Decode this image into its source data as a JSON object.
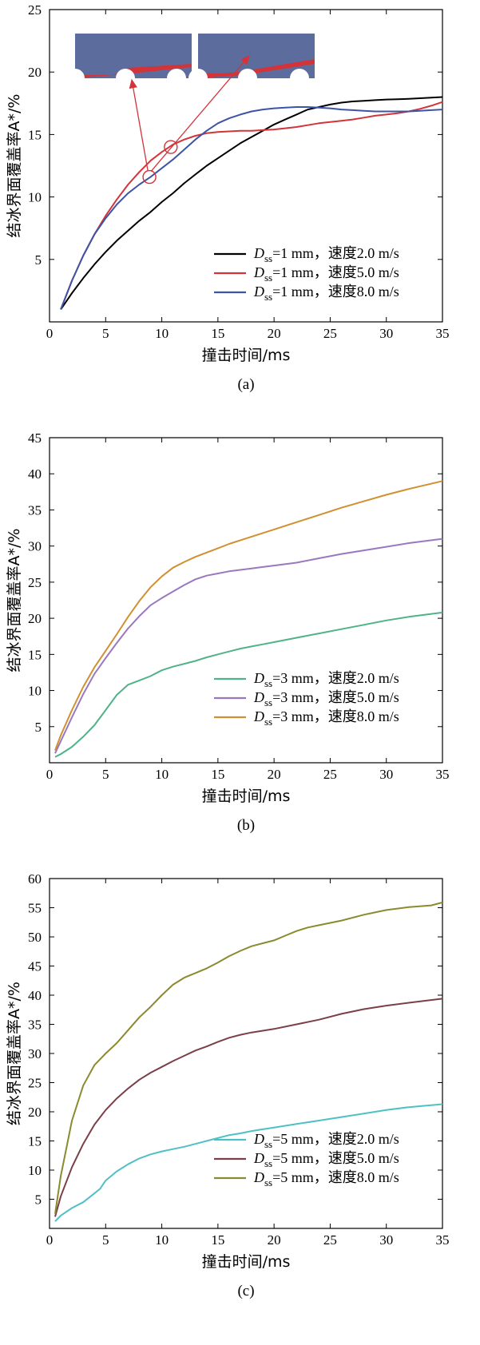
{
  "chart_data": [
    {
      "type": "line",
      "caption": "(a)",
      "xlabel": "撞击时间/ms",
      "ylabel": "结冰界面覆盖率A*/%",
      "xlim": [
        0,
        35
      ],
      "ylim": [
        0,
        25
      ],
      "xticks": [
        0,
        5,
        10,
        15,
        20,
        25,
        30,
        35
      ],
      "yticks": [
        5,
        10,
        15,
        20,
        25
      ],
      "legend_position": "bottom-right",
      "has_inset": true,
      "series": [
        {
          "name": "Dss=1 mm，速度2.0 m/s",
          "label_main": "D",
          "label_sub": "ss",
          "label_rest": "=1 mm，速度2.0 m/s",
          "color": "#000000",
          "x": [
            1,
            2,
            3,
            4,
            5,
            6,
            7,
            8,
            9,
            10,
            11,
            12,
            13,
            14,
            15,
            16,
            17,
            18,
            19,
            20,
            21,
            22,
            23,
            24,
            25,
            26,
            27,
            28,
            29,
            30,
            31,
            32,
            33,
            34,
            35
          ],
          "y": [
            1,
            2.3,
            3.5,
            4.6,
            5.6,
            6.5,
            7.3,
            8.1,
            8.8,
            9.6,
            10.3,
            11.1,
            11.8,
            12.5,
            13.1,
            13.7,
            14.3,
            14.8,
            15.3,
            15.8,
            16.2,
            16.6,
            17.0,
            17.2,
            17.4,
            17.55,
            17.65,
            17.7,
            17.75,
            17.8,
            17.82,
            17.85,
            17.9,
            17.95,
            18.0
          ]
        },
        {
          "name": "Dss=1 mm，速度5.0 m/s",
          "label_main": "D",
          "label_sub": "ss",
          "label_rest": "=1 mm，速度5.0 m/s",
          "color": "#d2343a",
          "x": [
            1,
            2,
            3,
            4,
            5,
            6,
            7,
            8,
            9,
            10,
            11,
            12,
            13,
            14,
            15,
            16,
            17,
            18,
            19,
            20,
            21,
            22,
            23,
            24,
            25,
            26,
            27,
            28,
            29,
            30,
            31,
            32,
            33,
            34,
            35
          ],
          "y": [
            1,
            3.3,
            5.3,
            7.0,
            8.5,
            9.8,
            11.0,
            12.0,
            12.9,
            13.6,
            14.2,
            14.6,
            14.9,
            15.1,
            15.2,
            15.25,
            15.3,
            15.3,
            15.35,
            15.4,
            15.5,
            15.6,
            15.75,
            15.9,
            16.0,
            16.1,
            16.2,
            16.35,
            16.5,
            16.6,
            16.7,
            16.85,
            17.05,
            17.3,
            17.6
          ]
        },
        {
          "name": "Dss=1 mm，速度8.0 m/s",
          "label_main": "D",
          "label_sub": "ss",
          "label_rest": "=1 mm，速度8.0 m/s",
          "color": "#3d54a6",
          "x": [
            1,
            2,
            3,
            4,
            5,
            6,
            7,
            8,
            9,
            10,
            11,
            12,
            13,
            14,
            15,
            16,
            17,
            18,
            19,
            20,
            21,
            22,
            23,
            24,
            25,
            26,
            27,
            28,
            29,
            30,
            31,
            32,
            33,
            34,
            35
          ],
          "y": [
            1,
            3.3,
            5.3,
            7.0,
            8.3,
            9.4,
            10.3,
            11.0,
            11.6,
            12.3,
            13.0,
            13.8,
            14.6,
            15.3,
            15.9,
            16.3,
            16.6,
            16.85,
            17.0,
            17.1,
            17.15,
            17.2,
            17.2,
            17.15,
            17.1,
            17.0,
            16.95,
            16.9,
            16.85,
            16.85,
            16.85,
            16.85,
            16.9,
            16.95,
            17.0
          ]
        }
      ]
    },
    {
      "type": "line",
      "caption": "(b)",
      "xlabel": "撞击时间/ms",
      "ylabel": "结冰界面覆盖率A*/%",
      "xlim": [
        0,
        35
      ],
      "ylim": [
        0,
        45
      ],
      "xticks": [
        0,
        5,
        10,
        15,
        20,
        25,
        30,
        35
      ],
      "yticks": [
        5,
        10,
        15,
        20,
        25,
        30,
        35,
        40,
        45
      ],
      "legend_position": "bottom-right",
      "series": [
        {
          "name": "Dss=3 mm，速度2.0 m/s",
          "label_main": "D",
          "label_sub": "ss",
          "label_rest": "=3 mm，速度2.0 m/s",
          "color": "#4fb387",
          "x": [
            0.5,
            1,
            2,
            3,
            4,
            5,
            6,
            7,
            8,
            9,
            10,
            11,
            12,
            13,
            14,
            15,
            16,
            17,
            18,
            19,
            20,
            22,
            24,
            26,
            28,
            30,
            32,
            35
          ],
          "y": [
            0.8,
            1.2,
            2.2,
            3.6,
            5.2,
            7.3,
            9.4,
            10.8,
            11.4,
            12.0,
            12.8,
            13.3,
            13.7,
            14.1,
            14.6,
            15.0,
            15.4,
            15.8,
            16.1,
            16.4,
            16.7,
            17.3,
            17.9,
            18.5,
            19.1,
            19.7,
            20.2,
            20.8
          ]
        },
        {
          "name": "Dss=3 mm，速度5.0 m/s",
          "label_main": "D",
          "label_sub": "ss",
          "label_rest": "=3 mm，速度5.0 m/s",
          "color": "#9a78c0",
          "x": [
            0.5,
            1,
            2,
            3,
            4,
            5,
            6,
            7,
            8,
            9,
            10,
            11,
            12,
            13,
            14,
            15,
            16,
            17,
            18,
            19,
            20,
            22,
            24,
            26,
            28,
            30,
            32,
            35
          ],
          "y": [
            1.3,
            3.0,
            6.3,
            9.5,
            12.3,
            14.5,
            16.6,
            18.6,
            20.3,
            21.8,
            22.8,
            23.7,
            24.6,
            25.4,
            25.9,
            26.2,
            26.5,
            26.7,
            26.9,
            27.1,
            27.3,
            27.7,
            28.3,
            28.9,
            29.4,
            29.9,
            30.4,
            31.0
          ]
        },
        {
          "name": "Dss=3 mm，速度8.0 m/s",
          "label_main": "D",
          "label_sub": "ss",
          "label_rest": "=3 mm，速度8.0 m/s",
          "color": "#d09030",
          "x": [
            0.5,
            1,
            2,
            3,
            4,
            5,
            6,
            7,
            8,
            9,
            10,
            11,
            12,
            13,
            14,
            15,
            16,
            17,
            18,
            19,
            20,
            22,
            24,
            26,
            28,
            30,
            32,
            35
          ],
          "y": [
            1.7,
            3.8,
            7.3,
            10.5,
            13.2,
            15.5,
            17.8,
            20.2,
            22.4,
            24.3,
            25.8,
            27.0,
            27.8,
            28.5,
            29.1,
            29.7,
            30.3,
            30.8,
            31.3,
            31.8,
            32.3,
            33.3,
            34.3,
            35.3,
            36.2,
            37.1,
            37.9,
            39.0
          ]
        }
      ]
    },
    {
      "type": "line",
      "caption": "(c)",
      "xlabel": "撞击时间/ms",
      "ylabel": "结冰界面覆盖率A*/%",
      "xlim": [
        0,
        35
      ],
      "ylim": [
        0,
        60
      ],
      "xticks": [
        0,
        5,
        10,
        15,
        20,
        25,
        30,
        35
      ],
      "yticks": [
        5,
        10,
        15,
        20,
        25,
        30,
        35,
        40,
        45,
        50,
        55,
        60
      ],
      "legend_position": "bottom-right",
      "series": [
        {
          "name": "Dss=5 mm，速度2.0 m/s",
          "label_main": "D",
          "label_sub": "ss",
          "label_rest": "=5 mm，速度2.0 m/s",
          "color": "#4fc0c4",
          "x": [
            0.5,
            1,
            2,
            3,
            4,
            4.5,
            5,
            6,
            7,
            8,
            9,
            10,
            11,
            12,
            13,
            14,
            15,
            16,
            17,
            18,
            19,
            20,
            22,
            24,
            26,
            28,
            30,
            32,
            35
          ],
          "y": [
            1.2,
            2.2,
            3.5,
            4.5,
            6.0,
            6.8,
            8.2,
            9.8,
            11.0,
            12.0,
            12.7,
            13.2,
            13.6,
            14.0,
            14.5,
            15.0,
            15.5,
            16.0,
            16.3,
            16.7,
            17.0,
            17.3,
            17.9,
            18.5,
            19.1,
            19.7,
            20.3,
            20.8,
            21.3
          ]
        },
        {
          "name": "Dss=5 mm，速度5.0 m/s",
          "label_main": "D",
          "label_sub": "ss",
          "label_rest": "=5 mm，速度5.0 m/s",
          "color": "#7a4048",
          "x": [
            0.5,
            1,
            2,
            3,
            4,
            5,
            6,
            7,
            8,
            9,
            10,
            11,
            12,
            13,
            14,
            15,
            16,
            17,
            18,
            19,
            20,
            22,
            24,
            26,
            28,
            30,
            32,
            35
          ],
          "y": [
            2.0,
            5.5,
            10.5,
            14.5,
            17.8,
            20.3,
            22.3,
            24.0,
            25.5,
            26.7,
            27.7,
            28.7,
            29.6,
            30.5,
            31.2,
            32.0,
            32.7,
            33.2,
            33.6,
            33.9,
            34.2,
            35.0,
            35.8,
            36.8,
            37.6,
            38.2,
            38.7,
            39.4
          ]
        },
        {
          "name": "Dss=5 mm，速度8.0 m/s",
          "label_main": "D",
          "label_sub": "ss",
          "label_rest": "=5 mm，速度8.0 m/s",
          "color": "#8b8a2e",
          "x": [
            0.5,
            1,
            2,
            3,
            4,
            5,
            6,
            7,
            8,
            9,
            10,
            11,
            12,
            13,
            14,
            15,
            16,
            17,
            18,
            19,
            20,
            21,
            22,
            23,
            24,
            26,
            28,
            30,
            32,
            34,
            35
          ],
          "y": [
            2.5,
            9.0,
            18.5,
            24.5,
            28.0,
            30.0,
            31.8,
            34.0,
            36.2,
            38.0,
            40.0,
            41.8,
            43.0,
            43.8,
            44.6,
            45.6,
            46.7,
            47.6,
            48.4,
            48.9,
            49.4,
            50.2,
            51.0,
            51.6,
            52.0,
            52.8,
            53.8,
            54.6,
            55.1,
            55.4,
            55.9
          ]
        }
      ]
    }
  ]
}
